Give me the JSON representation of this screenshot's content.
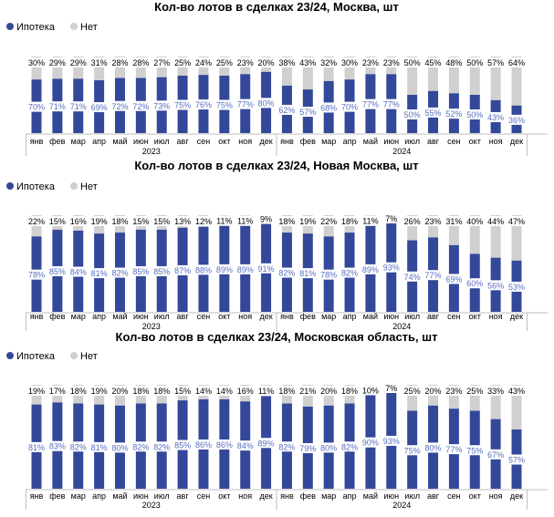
{
  "colors": {
    "mortgage": "#34489a",
    "no": "#d0d0d0",
    "mortgage_label": "#5a6fc0",
    "text": "#000000",
    "axis": "#bfbfbf"
  },
  "chart_data": [
    {
      "type": "bar",
      "stacked": true,
      "title": "Кол-во лотов в сделках 23/24, Москва, шт",
      "legend": [
        "Ипотека",
        "Нет"
      ],
      "categories": [
        "янв",
        "фев",
        "мар",
        "апр",
        "май",
        "июн",
        "июл",
        "авг",
        "сен",
        "окт",
        "ноя",
        "дек",
        "янв",
        "фев",
        "мар",
        "апр",
        "май",
        "июн",
        "июл",
        "авг",
        "сен",
        "окт",
        "ноя",
        "дек"
      ],
      "year_labels": [
        "2023",
        "2024"
      ],
      "series": [
        {
          "name": "Ипотека",
          "values": [
            70,
            71,
            71,
            69,
            72,
            72,
            73,
            75,
            76,
            75,
            77,
            80,
            62,
            57,
            68,
            70,
            77,
            77,
            50,
            55,
            52,
            50,
            43,
            36
          ]
        },
        {
          "name": "Нет",
          "values": [
            30,
            29,
            29,
            31,
            28,
            28,
            27,
            25,
            24,
            25,
            23,
            20,
            38,
            43,
            32,
            30,
            23,
            23,
            50,
            45,
            48,
            50,
            57,
            64
          ]
        }
      ],
      "value_labels": {
        "Ипотека": [
          "70%",
          "71%",
          "71%",
          "69%",
          "72%",
          "72%",
          "73%",
          "75%",
          "76%",
          "75%",
          "77%",
          "80%",
          "62%",
          "57%",
          "68%",
          "70%",
          "77%",
          "77%",
          "50%",
          "55%",
          "52%",
          "50%",
          "43%",
          "36%"
        ],
        "Нет": [
          "30%",
          "29%",
          "29%",
          "31%",
          "28%",
          "28%",
          "27%",
          "25%",
          "24%",
          "25%",
          "23%",
          "20%",
          "38%",
          "43%",
          "32%",
          "30%",
          "23%",
          "23%",
          "50%",
          "45%",
          "48%",
          "50%",
          "57%",
          "64%"
        ]
      }
    },
    {
      "type": "bar",
      "stacked": true,
      "title": "Кол-во лотов в сделках 23/24, Новая Москва, шт",
      "legend": [
        "Ипотека",
        "Нет"
      ],
      "categories": [
        "янв",
        "фев",
        "мар",
        "апр",
        "май",
        "июн",
        "июл",
        "авг",
        "сен",
        "окт",
        "ноя",
        "дек",
        "янв",
        "фев",
        "мар",
        "апр",
        "май",
        "июн",
        "июл",
        "авг",
        "сен",
        "окт",
        "ноя",
        "дек"
      ],
      "year_labels": [
        "2023",
        "2024"
      ],
      "series": [
        {
          "name": "Ипотека",
          "values": [
            78,
            85,
            84,
            81,
            82,
            85,
            85,
            87,
            88,
            89,
            89,
            91,
            82,
            81,
            78,
            82,
            89,
            93,
            74,
            77,
            69,
            60,
            56,
            53
          ]
        },
        {
          "name": "Нет",
          "values": [
            22,
            15,
            16,
            19,
            18,
            15,
            15,
            13,
            12,
            11,
            11,
            9,
            18,
            19,
            22,
            18,
            11,
            7,
            26,
            23,
            31,
            40,
            44,
            47
          ]
        }
      ],
      "value_labels": {
        "Ипотека": [
          "78%",
          "85%",
          "84%",
          "81%",
          "82%",
          "85%",
          "85%",
          "87%",
          "88%",
          "89%",
          "89%",
          "91%",
          "82%",
          "81%",
          "78%",
          "82%",
          "89%",
          "93%",
          "74%",
          "77%",
          "69%",
          "60%",
          "56%",
          "53%"
        ],
        "Нет": [
          "22%",
          "15%",
          "16%",
          "19%",
          "18%",
          "15%",
          "15%",
          "13%",
          "12%",
          "11%",
          "11%",
          "9%",
          "18%",
          "19%",
          "22%",
          "18%",
          "11%",
          "7%",
          "26%",
          "23%",
          "31%",
          "40%",
          "44%",
          "47%"
        ]
      }
    },
    {
      "type": "bar",
      "stacked": true,
      "title": "Кол-во лотов в сделках 23/24, Московская область, шт",
      "legend": [
        "Ипотека",
        "Нет"
      ],
      "categories": [
        "янв",
        "фев",
        "мар",
        "апр",
        "май",
        "июн",
        "июл",
        "авг",
        "сен",
        "окт",
        "ноя",
        "дек",
        "янв",
        "фев",
        "мар",
        "апр",
        "май",
        "июн",
        "июл",
        "авг",
        "сен",
        "окт",
        "ноя",
        "дек"
      ],
      "year_labels": [
        "2023",
        "2024"
      ],
      "series": [
        {
          "name": "Ипотека",
          "values": [
            81,
            83,
            82,
            81,
            80,
            82,
            82,
            85,
            86,
            86,
            84,
            89,
            82,
            79,
            80,
            82,
            90,
            93,
            75,
            80,
            77,
            75,
            67,
            57
          ]
        },
        {
          "name": "Нет",
          "values": [
            19,
            17,
            18,
            19,
            20,
            18,
            18,
            15,
            14,
            14,
            16,
            11,
            18,
            21,
            20,
            18,
            10,
            7,
            25,
            20,
            23,
            25,
            33,
            43
          ]
        }
      ],
      "value_labels": {
        "Ипотека": [
          "81%",
          "83%",
          "82%",
          "81%",
          "80%",
          "82%",
          "82%",
          "85%",
          "86%",
          "86%",
          "84%",
          "89%",
          "82%",
          "79%",
          "80%",
          "82%",
          "90%",
          "93%",
          "75%",
          "80%",
          "77%",
          "75%",
          "67%",
          "57%"
        ],
        "Нет": [
          "19%",
          "17%",
          "18%",
          "19%",
          "20%",
          "18%",
          "18%",
          "15%",
          "14%",
          "14%",
          "16%",
          "11%",
          "18%",
          "21%",
          "20%",
          "18%",
          "10%",
          "7%",
          "25%",
          "20%",
          "23%",
          "25%",
          "33%",
          "43%"
        ]
      }
    }
  ]
}
